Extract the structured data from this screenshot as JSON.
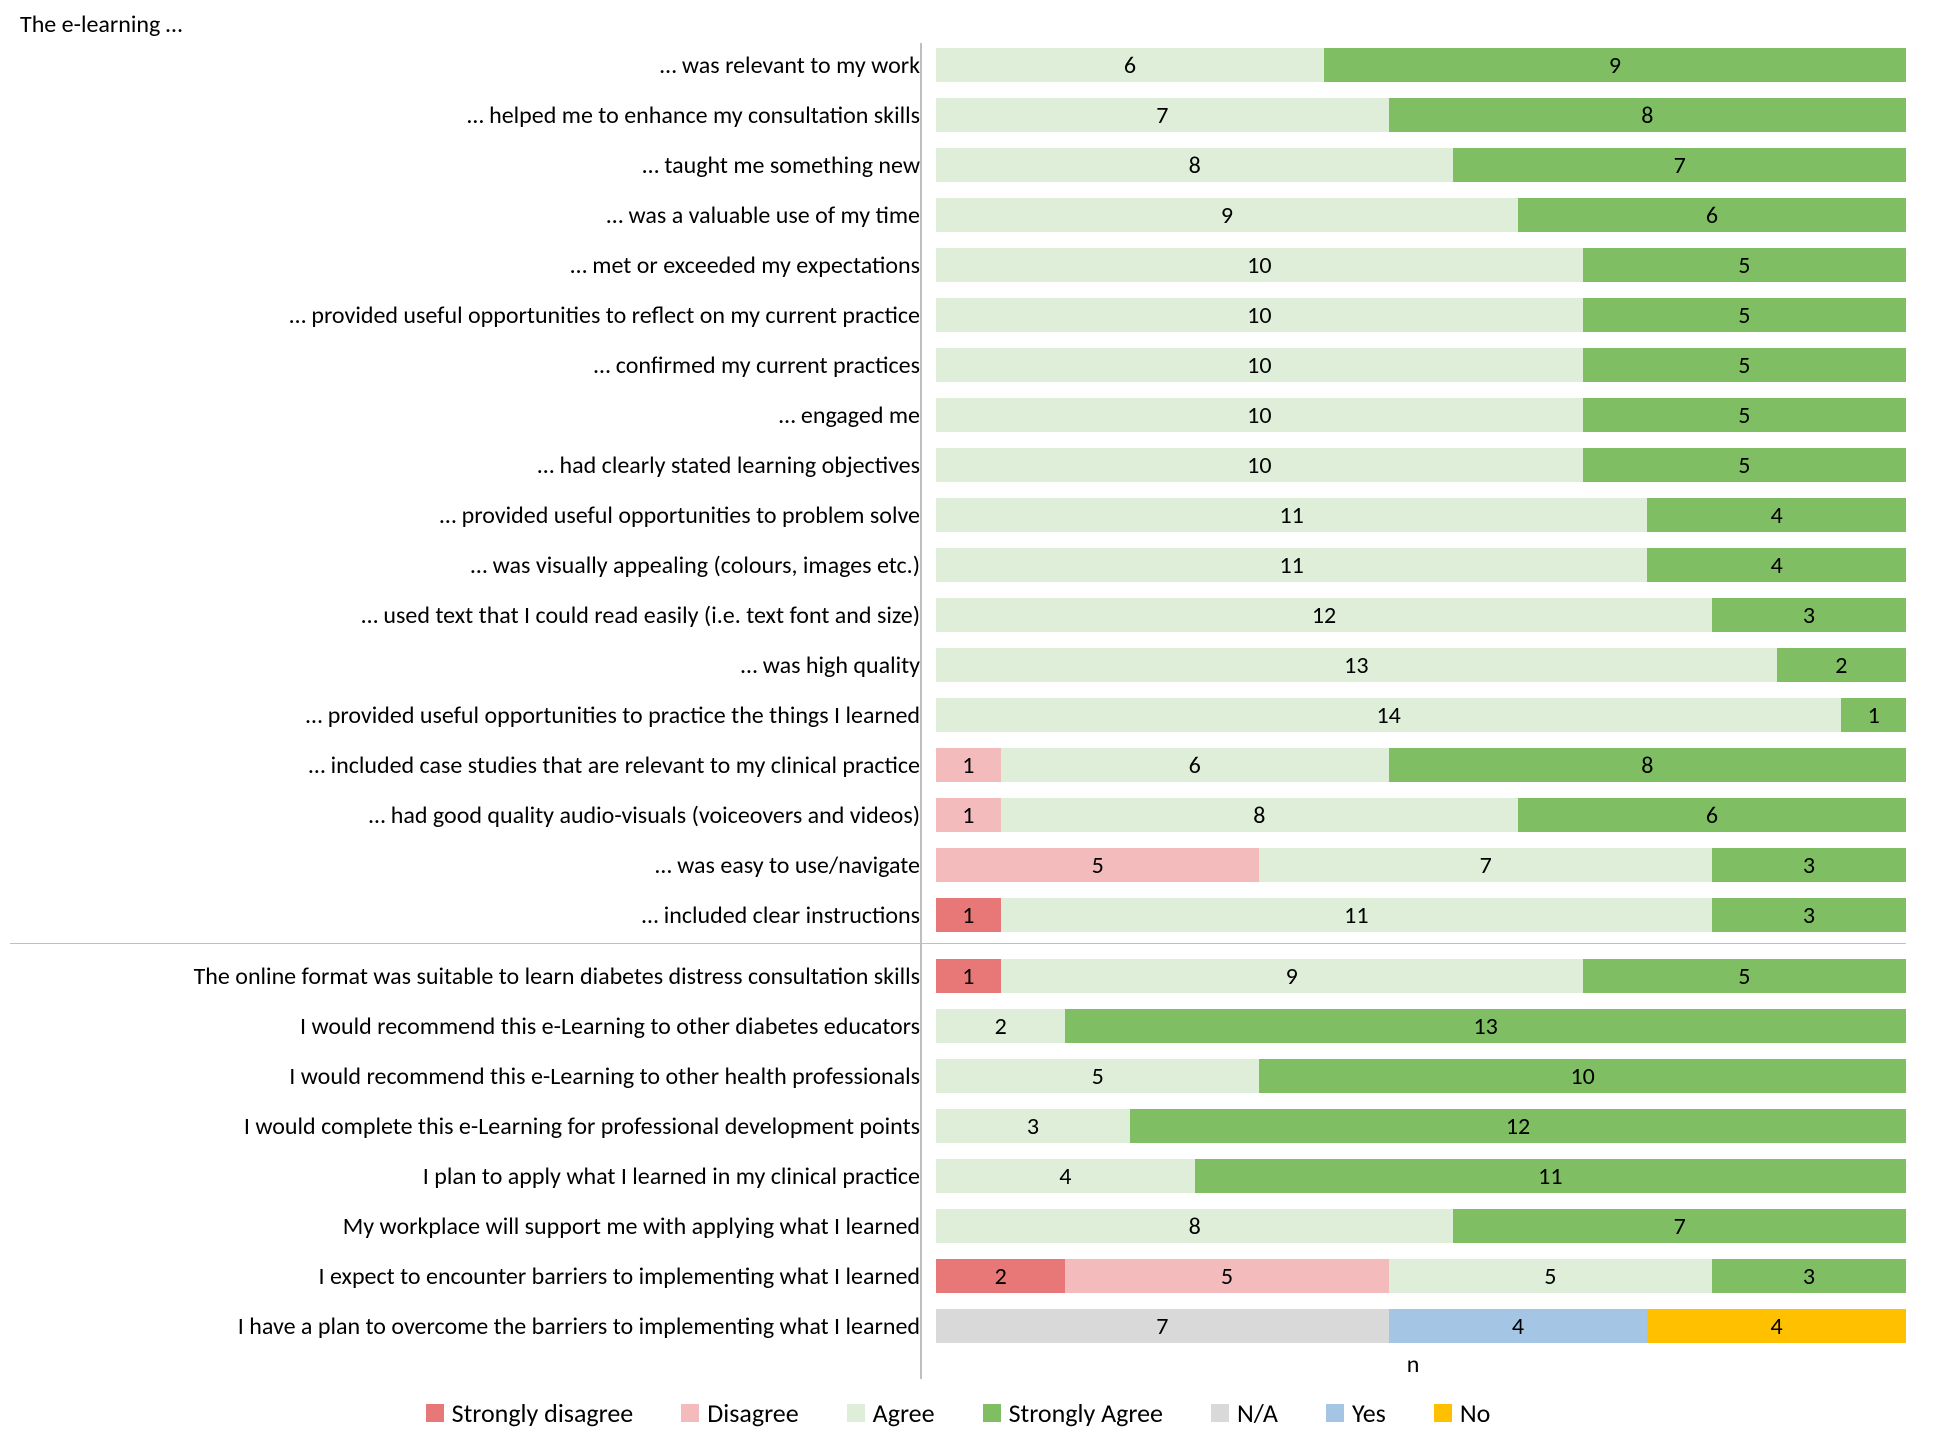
{
  "section_title": "The e-learning …",
  "x_axis_label": "n",
  "max_value": 15,
  "colors": {
    "strongly_disagree": "#e87777",
    "disagree": "#f3bbbb",
    "agree": "#dfeed8",
    "strongly_agree": "#7fbe63",
    "na": "#d9d9d9",
    "yes": "#a4c5e4",
    "no": "#ffc000",
    "text": "#000000",
    "axis": "#bfbfbf",
    "background": "#ffffff"
  },
  "legend": [
    {
      "key": "strongly_disagree",
      "label": "Strongly disagree"
    },
    {
      "key": "disagree",
      "label": "Disagree"
    },
    {
      "key": "agree",
      "label": "Agree"
    },
    {
      "key": "strongly_agree",
      "label": "Strongly Agree"
    },
    {
      "key": "na",
      "label": "N/A"
    },
    {
      "key": "yes",
      "label": "Yes"
    },
    {
      "key": "no",
      "label": "No"
    }
  ],
  "sections": [
    {
      "rows": [
        {
          "label": "… was relevant to my work",
          "segments": [
            {
              "key": "agree",
              "value": 6
            },
            {
              "key": "strongly_agree",
              "value": 9
            }
          ]
        },
        {
          "label": "… helped me to enhance my consultation skills",
          "segments": [
            {
              "key": "agree",
              "value": 7
            },
            {
              "key": "strongly_agree",
              "value": 8
            }
          ]
        },
        {
          "label": "… taught me something new",
          "segments": [
            {
              "key": "agree",
              "value": 8
            },
            {
              "key": "strongly_agree",
              "value": 7
            }
          ]
        },
        {
          "label": "… was a valuable use of my time",
          "segments": [
            {
              "key": "agree",
              "value": 9
            },
            {
              "key": "strongly_agree",
              "value": 6
            }
          ]
        },
        {
          "label": "… met or exceeded my expectations",
          "segments": [
            {
              "key": "agree",
              "value": 10
            },
            {
              "key": "strongly_agree",
              "value": 5
            }
          ]
        },
        {
          "label": "… provided useful opportunities to reflect on my current practice",
          "segments": [
            {
              "key": "agree",
              "value": 10
            },
            {
              "key": "strongly_agree",
              "value": 5
            }
          ]
        },
        {
          "label": "… confirmed my current practices",
          "segments": [
            {
              "key": "agree",
              "value": 10
            },
            {
              "key": "strongly_agree",
              "value": 5
            }
          ]
        },
        {
          "label": "… engaged me",
          "segments": [
            {
              "key": "agree",
              "value": 10
            },
            {
              "key": "strongly_agree",
              "value": 5
            }
          ]
        },
        {
          "label": "… had clearly stated learning objectives",
          "segments": [
            {
              "key": "agree",
              "value": 10
            },
            {
              "key": "strongly_agree",
              "value": 5
            }
          ]
        },
        {
          "label": "… provided useful opportunities to problem solve",
          "segments": [
            {
              "key": "agree",
              "value": 11
            },
            {
              "key": "strongly_agree",
              "value": 4
            }
          ]
        },
        {
          "label": "… was visually appealing (colours, images etc.)",
          "segments": [
            {
              "key": "agree",
              "value": 11
            },
            {
              "key": "strongly_agree",
              "value": 4
            }
          ]
        },
        {
          "label": "… used text that I could read easily (i.e. text font and size)",
          "segments": [
            {
              "key": "agree",
              "value": 12
            },
            {
              "key": "strongly_agree",
              "value": 3
            }
          ]
        },
        {
          "label": "… was high quality",
          "segments": [
            {
              "key": "agree",
              "value": 13
            },
            {
              "key": "strongly_agree",
              "value": 2
            }
          ]
        },
        {
          "label": "… provided useful opportunities to practice the things I learned",
          "segments": [
            {
              "key": "agree",
              "value": 14
            },
            {
              "key": "strongly_agree",
              "value": 1
            }
          ]
        },
        {
          "label": "… included case studies that are relevant to my clinical practice",
          "segments": [
            {
              "key": "disagree",
              "value": 1
            },
            {
              "key": "agree",
              "value": 6
            },
            {
              "key": "strongly_agree",
              "value": 8
            }
          ]
        },
        {
          "label": "… had good quality audio-visuals (voiceovers and videos)",
          "segments": [
            {
              "key": "disagree",
              "value": 1
            },
            {
              "key": "agree",
              "value": 8
            },
            {
              "key": "strongly_agree",
              "value": 6
            }
          ]
        },
        {
          "label": "… was easy to use/navigate",
          "segments": [
            {
              "key": "disagree",
              "value": 5
            },
            {
              "key": "agree",
              "value": 7
            },
            {
              "key": "strongly_agree",
              "value": 3
            }
          ]
        },
        {
          "label": "… included clear instructions",
          "segments": [
            {
              "key": "strongly_disagree",
              "value": 1
            },
            {
              "key": "agree",
              "value": 11
            },
            {
              "key": "strongly_agree",
              "value": 3
            }
          ]
        }
      ]
    },
    {
      "rows": [
        {
          "label": "The online format was suitable to learn diabetes distress consultation skills",
          "segments": [
            {
              "key": "strongly_disagree",
              "value": 1
            },
            {
              "key": "agree",
              "value": 9
            },
            {
              "key": "strongly_agree",
              "value": 5
            }
          ]
        },
        {
          "label": "I would recommend this e-Learning to other diabetes educators",
          "segments": [
            {
              "key": "agree",
              "value": 2
            },
            {
              "key": "strongly_agree",
              "value": 13
            }
          ]
        },
        {
          "label": "I would recommend this  e-Learning to other health professionals",
          "segments": [
            {
              "key": "agree",
              "value": 5
            },
            {
              "key": "strongly_agree",
              "value": 10
            }
          ]
        },
        {
          "label": "I would complete this  e-Learning for professional development points",
          "segments": [
            {
              "key": "agree",
              "value": 3
            },
            {
              "key": "strongly_agree",
              "value": 12
            }
          ]
        },
        {
          "label": "I plan to apply what I learned in my clinical practice",
          "segments": [
            {
              "key": "agree",
              "value": 4
            },
            {
              "key": "strongly_agree",
              "value": 11
            }
          ]
        },
        {
          "label": "My workplace will support me with applying what I learned",
          "segments": [
            {
              "key": "agree",
              "value": 8
            },
            {
              "key": "strongly_agree",
              "value": 7
            }
          ]
        },
        {
          "label": "I expect to encounter barriers to implementing what I learned",
          "segments": [
            {
              "key": "strongly_disagree",
              "value": 2
            },
            {
              "key": "disagree",
              "value": 5
            },
            {
              "key": "agree",
              "value": 5
            },
            {
              "key": "strongly_agree",
              "value": 3
            }
          ]
        },
        {
          "label": "I have a plan to overcome the barriers to  implementing what I learned",
          "segments": [
            {
              "key": "na",
              "value": 7
            },
            {
              "key": "yes",
              "value": 4
            },
            {
              "key": "no",
              "value": 4
            }
          ]
        }
      ]
    }
  ]
}
